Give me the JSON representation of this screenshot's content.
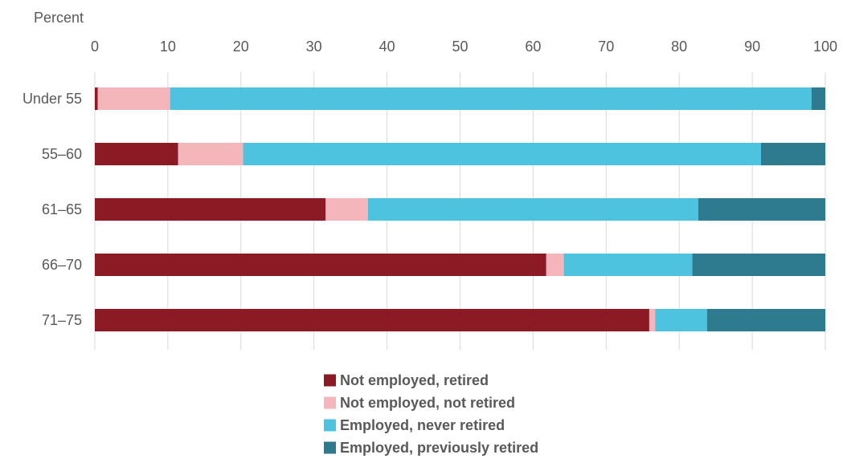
{
  "chart_data": {
    "type": "bar",
    "orientation": "horizontal",
    "stacked": true,
    "xlabel": "Percent",
    "xlim": [
      0,
      100
    ],
    "xticks": [
      0,
      10,
      20,
      30,
      40,
      50,
      60,
      70,
      80,
      90,
      100
    ],
    "grid": true,
    "legend_position": "bottom",
    "categories": [
      "Under 55",
      "55–60",
      "61–65",
      "66–70",
      "71–75"
    ],
    "series": [
      {
        "name": "Not employed, retired",
        "color": "#8B1A24",
        "values": [
          0.4,
          11.4,
          31.6,
          61.8,
          75.9
        ]
      },
      {
        "name": "Not employed, not retired",
        "color": "#F4B6BA",
        "values": [
          9.9,
          8.9,
          5.8,
          2.4,
          0.8
        ]
      },
      {
        "name": "Employed, never retired",
        "color": "#4DC3E0",
        "values": [
          87.8,
          70.9,
          45.2,
          17.6,
          7.1
        ]
      },
      {
        "name": "Employed, previously retired",
        "color": "#2E7A8E",
        "values": [
          1.9,
          8.8,
          17.4,
          18.2,
          16.2
        ]
      }
    ]
  }
}
